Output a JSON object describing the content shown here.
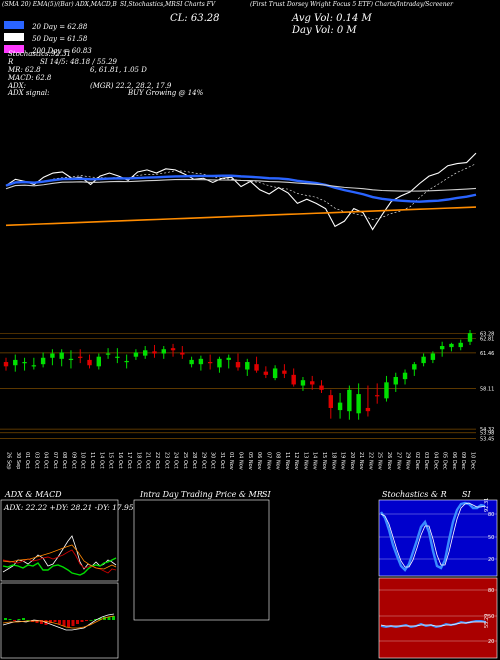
{
  "header": {
    "line1_parts": [
      "(SMA 20) EMA(5)/(Bar) ADX,MACD,B",
      "SI,Stochastics,MR",
      "SI Charts FV",
      "(First Trust Dorsey Wright Focus 5 ETF) Charts/Intraday/Screener"
    ],
    "close_label": "CL: 63.28",
    "avg_vol_label": "Avg Vol: 0.14  M",
    "day_vol_label": "Day Vol: 0   M",
    "legend": [
      {
        "label": "20  Day = 62.88",
        "color": "#2a64ff"
      },
      {
        "label": "50  Day = 61.58",
        "color": "#ffffff"
      },
      {
        "label": "200  Day = 60.83",
        "color": "#ff3bff"
      }
    ],
    "stochastics_line": "Stochastics:92.31",
    "r_label": "R",
    "si_line": "SI 14/5: 48.18 / 55.29",
    "mr_line": "MR: 62.8",
    "mr_values": "6, 61.81, 1.05 D",
    "macd_line": "MACD: 62.8",
    "adx_line": "ADX:",
    "adx_values": "(MGR) 22.2,  28.2,  17.9",
    "adx_signal_label": "ADX  signal:",
    "adx_signal_value": "BUY Growing @ 14%"
  },
  "price_axis_labels": [
    "63.28",
    "62.81",
    "61.46",
    "58.11",
    "54.32",
    "53.98",
    "53.45"
  ],
  "date_labels": [
    "26 Sep",
    "30 Sep",
    "01 Oct",
    "03 Oct",
    "04 Oct",
    "07 Oct",
    "08 Oct",
    "09 Oct",
    "10 Oct",
    "11 Oct",
    "14 Oct",
    "15 Oct",
    "16 Oct",
    "17 Oct",
    "18 Oct",
    "21 Oct",
    "22 Oct",
    "23 Oct",
    "24 Oct",
    "25 Oct",
    "28 Oct",
    "29 Oct",
    "30 Oct",
    "31 Oct",
    "01 Nov",
    "04 Nov",
    "05 Nov",
    "06 Nov",
    "07 Nov",
    "08 Nov",
    "11 Nov",
    "12 Nov",
    "13 Nov",
    "14 Nov",
    "15 Nov",
    "18 Nov",
    "19 Nov",
    "20 Nov",
    "21 Nov",
    "22 Nov",
    "25 Nov",
    "26 Nov",
    "27 Nov",
    "29 Nov",
    "02 Dec",
    "03 Dec",
    "04 Dec",
    "05 Dec",
    "06 Dec",
    "09 Dec",
    "10 Dec"
  ],
  "panels": {
    "adx_title": "ADX  & MACD",
    "adx_values": "ADX: 22.22  +DY: 28.21  -DY: 17.95",
    "intraday_title": "Intra Day Trading Price  & MR",
    "intraday_si": "SI",
    "stoch_title": "Stochastics & R",
    "stoch_si": "SI",
    "stoch_value": "92.31",
    "stoch_ticks": [
      "80",
      "50",
      "20"
    ],
    "si_ticks": [
      "80",
      "50",
      "20"
    ],
    "si_value": "55.29"
  },
  "colors": {
    "up": "#00e000",
    "down": "#e00000",
    "sma20": "#2a64ff",
    "sma50": "#ffffff",
    "sma200": "#ff8c00",
    "stoch_bg": "#0000cc",
    "si_bg": "#aa0000",
    "grid": "#7a4a00"
  },
  "chart_data": {
    "type": "candlestick",
    "title": "First Trust Dorsey Wright Focus 5 ETF",
    "ylabel": "",
    "ylim": [
      53.3,
      63.6
    ],
    "categories": [
      "26 Sep",
      "30 Sep",
      "01 Oct",
      "03 Oct",
      "04 Oct",
      "07 Oct",
      "08 Oct",
      "09 Oct",
      "10 Oct",
      "11 Oct",
      "14 Oct",
      "15 Oct",
      "16 Oct",
      "17 Oct",
      "18 Oct",
      "21 Oct",
      "22 Oct",
      "23 Oct",
      "24 Oct",
      "25 Oct",
      "28 Oct",
      "29 Oct",
      "30 Oct",
      "31 Oct",
      "01 Nov",
      "04 Nov",
      "05 Nov",
      "06 Nov",
      "07 Nov",
      "08 Nov",
      "11 Nov",
      "12 Nov",
      "13 Nov",
      "14 Nov",
      "15 Nov",
      "18 Nov",
      "19 Nov",
      "20 Nov",
      "21 Nov",
      "22 Nov",
      "25 Nov",
      "26 Nov",
      "27 Nov",
      "29 Nov",
      "02 Dec",
      "03 Dec",
      "04 Dec",
      "05 Dec",
      "06 Dec",
      "09 Dec",
      "10 Dec"
    ],
    "series": [
      {
        "name": "open",
        "values": [
          60.6,
          60.3,
          60.5,
          60.2,
          60.4,
          61.0,
          60.9,
          60.8,
          61.1,
          60.8,
          60.2,
          61.3,
          61.0,
          60.6,
          61.1,
          61.2,
          61.6,
          61.4,
          61.9,
          61.5,
          60.4,
          60.4,
          60.6,
          60.1,
          60.8,
          60.6,
          59.9,
          60.4,
          59.7,
          59.1,
          59.8,
          59.4,
          58.4,
          58.8,
          58.4,
          57.5,
          56.1,
          56.0,
          55.8,
          56.3,
          57.5,
          57.2,
          58.5,
          59.0,
          59.9,
          60.5,
          60.8,
          61.8,
          62.0,
          62.0,
          62.5
        ]
      },
      {
        "name": "high",
        "values": [
          61.0,
          61.3,
          61.0,
          61.0,
          61.5,
          61.8,
          61.8,
          61.7,
          61.8,
          61.3,
          61.4,
          61.9,
          61.9,
          61.3,
          61.8,
          62.1,
          62.2,
          62.1,
          62.3,
          62.1,
          61.1,
          61.2,
          61.3,
          61.1,
          61.3,
          61.4,
          60.9,
          61.1,
          60.2,
          60.3,
          60.4,
          60.0,
          59.2,
          59.3,
          58.9,
          58.0,
          57.7,
          58.4,
          58.6,
          58.4,
          58.6,
          59.3,
          59.6,
          59.9,
          60.6,
          61.4,
          61.6,
          62.5,
          62.4,
          62.7,
          63.6
        ]
      },
      {
        "name": "low",
        "values": [
          59.8,
          59.7,
          59.8,
          59.9,
          60.1,
          60.3,
          60.2,
          60.0,
          60.5,
          60.0,
          59.9,
          60.9,
          60.5,
          60.0,
          60.8,
          60.9,
          61.0,
          60.9,
          61.1,
          60.9,
          60.1,
          59.8,
          59.9,
          59.6,
          60.0,
          59.8,
          59.3,
          59.6,
          59.1,
          58.9,
          59.1,
          58.3,
          57.9,
          58.0,
          57.7,
          55.3,
          55.3,
          55.2,
          55.2,
          55.5,
          56.7,
          56.9,
          57.8,
          58.5,
          59.3,
          60.2,
          60.5,
          61.1,
          61.6,
          61.7,
          62.2
        ]
      },
      {
        "name": "close",
        "values": [
          60.2,
          60.8,
          60.6,
          60.3,
          61.0,
          61.4,
          61.5,
          60.9,
          61.0,
          60.3,
          61.1,
          61.4,
          61.1,
          60.7,
          61.5,
          61.7,
          61.4,
          61.8,
          61.7,
          61.3,
          60.8,
          60.9,
          60.5,
          60.9,
          61.0,
          60.1,
          60.6,
          59.8,
          59.4,
          60.0,
          59.5,
          58.5,
          58.9,
          58.5,
          58.0,
          56.3,
          56.8,
          58.0,
          57.6,
          56.0,
          57.4,
          58.7,
          59.2,
          59.6,
          60.4,
          61.1,
          61.4,
          62.1,
          62.3,
          62.4,
          63.3
        ]
      }
    ]
  }
}
